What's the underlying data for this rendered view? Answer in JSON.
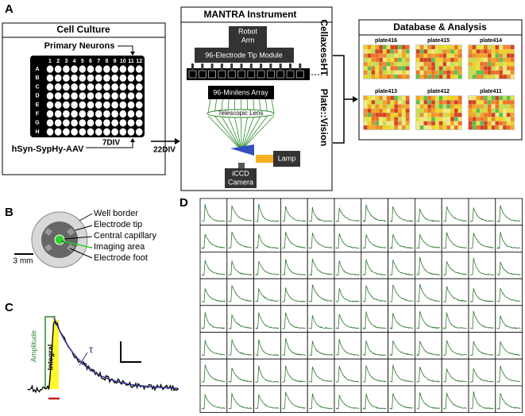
{
  "panel_a": {
    "label": "A",
    "cell_culture": {
      "title": "Cell Culture",
      "primary_neurons": "Primary Neurons",
      "columns": [
        1,
        2,
        3,
        4,
        5,
        6,
        7,
        8,
        9,
        10,
        11,
        12
      ],
      "rows": [
        "A",
        "B",
        "C",
        "D",
        "E",
        "F",
        "G",
        "H"
      ],
      "incubation": "7DIV",
      "virus": "hSyn-SypHy-AAV"
    },
    "transfer_label": "22DIV",
    "instrument": {
      "title": "MANTRA Instrument",
      "robot_arm": [
        "Robot",
        "Arm"
      ],
      "tip_module": "96-Electrode Tip Module",
      "minilens_array": "96-Minilens Array",
      "lens": "Telescopic Lens",
      "lamp": "Lamp",
      "camera": [
        "iCCD",
        "Camera"
      ],
      "systems": [
        "CellaxessHT",
        "Plate::Vision"
      ]
    },
    "database": {
      "title": "Database & Analysis",
      "plates": [
        "plate416",
        "plate415",
        "plate414",
        "plate413",
        "plate412",
        "plate411"
      ]
    }
  },
  "panel_b": {
    "label": "B",
    "parts": [
      "Well border",
      "Electrode tip",
      "Central capillary",
      "Imaging area",
      "Electrode foot"
    ],
    "scale": "3 mm"
  },
  "panel_c": {
    "label": "C",
    "amplitude": "Amplitude",
    "integral": "Integral",
    "tau": "τ"
  },
  "panel_d": {
    "label": "D"
  }
}
